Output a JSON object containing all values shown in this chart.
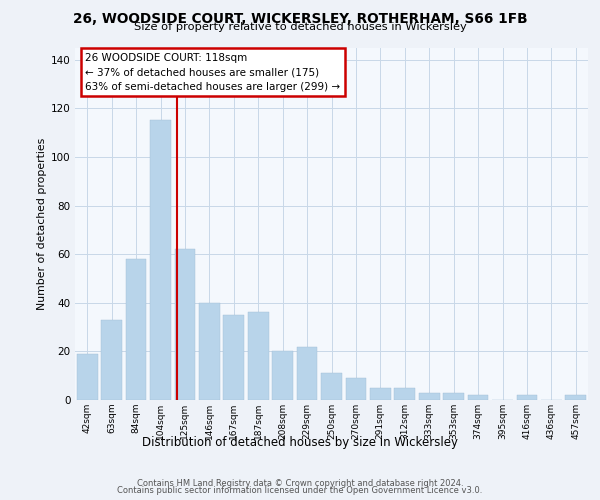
{
  "title1": "26, WOODSIDE COURT, WICKERSLEY, ROTHERHAM, S66 1FB",
  "title2": "Size of property relative to detached houses in Wickersley",
  "xlabel": "Distribution of detached houses by size in Wickersley",
  "ylabel": "Number of detached properties",
  "bar_labels": [
    "42sqm",
    "63sqm",
    "84sqm",
    "104sqm",
    "125sqm",
    "146sqm",
    "167sqm",
    "187sqm",
    "208sqm",
    "229sqm",
    "250sqm",
    "270sqm",
    "291sqm",
    "312sqm",
    "333sqm",
    "353sqm",
    "374sqm",
    "395sqm",
    "416sqm",
    "436sqm",
    "457sqm"
  ],
  "bar_values": [
    19,
    33,
    58,
    115,
    62,
    40,
    35,
    36,
    20,
    22,
    11,
    9,
    5,
    5,
    3,
    3,
    2,
    0,
    2,
    0,
    2
  ],
  "bar_color": "#b8d4ea",
  "annotation_title": "26 WOODSIDE COURT: 118sqm",
  "annotation_line1": "← 37% of detached houses are smaller (175)",
  "annotation_line2": "63% of semi-detached houses are larger (299) →",
  "annotation_box_color": "#ffffff",
  "annotation_box_edge": "#cc0000",
  "redline_color": "#cc0000",
  "redline_bar_index": 4,
  "ylim": [
    0,
    145
  ],
  "yticks": [
    0,
    20,
    40,
    60,
    80,
    100,
    120,
    140
  ],
  "footer1": "Contains HM Land Registry data © Crown copyright and database right 2024.",
  "footer2": "Contains public sector information licensed under the Open Government Licence v3.0.",
  "bg_color": "#eef2f8",
  "plot_bg_color": "#f4f8fd",
  "grid_color": "#c8d8e8"
}
